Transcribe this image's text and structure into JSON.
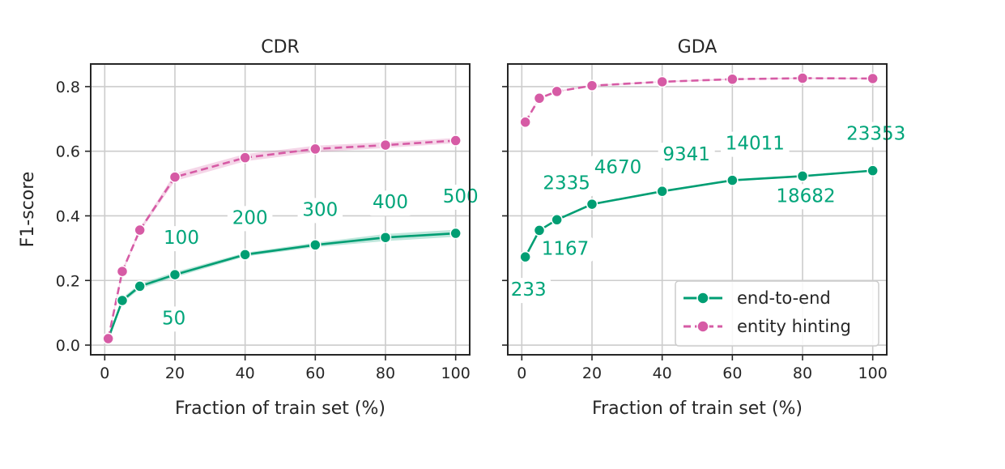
{
  "chart_data": [
    {
      "type": "line",
      "title": "CDR",
      "xlabel": "Fraction of train set (%)",
      "ylabel": "F1-score",
      "xlim": [
        -4,
        104
      ],
      "ylim": [
        -0.03,
        0.87
      ],
      "xticks": [
        0,
        20,
        40,
        60,
        80,
        100
      ],
      "yticks": [
        0.0,
        0.2,
        0.4,
        0.6,
        0.8
      ],
      "ytick_labels": [
        "0.0",
        "0.2",
        "0.4",
        "0.6",
        "0.8"
      ],
      "grid": true,
      "x": [
        1,
        5,
        10,
        20,
        40,
        60,
        80,
        100
      ],
      "series": [
        {
          "name": "end-to-end",
          "values": [
            0.02,
            0.138,
            0.182,
            0.218,
            0.28,
            0.31,
            0.333,
            0.346
          ],
          "band": [
            0.006,
            0.008,
            0.008,
            0.008,
            0.006,
            0.007,
            0.011,
            0.011
          ]
        },
        {
          "name": "entity hinting",
          "values": [
            0.02,
            0.228,
            0.356,
            0.52,
            0.58,
            0.607,
            0.619,
            0.633
          ],
          "band": [
            0.005,
            0.006,
            0.006,
            0.012,
            0.011,
            0.01,
            0.009,
            0.008
          ]
        }
      ],
      "annotations": [
        {
          "text": "50",
          "x": 10,
          "y": 0.182
        },
        {
          "text": "100",
          "x": 20,
          "y": 0.218
        },
        {
          "text": "200",
          "x": 40,
          "y": 0.28
        },
        {
          "text": "300",
          "x": 60,
          "y": 0.31
        },
        {
          "text": "400",
          "x": 80,
          "y": 0.333
        },
        {
          "text": "500",
          "x": 100,
          "y": 0.346
        }
      ]
    },
    {
      "type": "line",
      "title": "GDA",
      "xlabel": "Fraction of train set (%)",
      "ylabel": "",
      "xlim": [
        -4,
        104
      ],
      "ylim": [
        -0.03,
        0.87
      ],
      "xticks": [
        0,
        20,
        40,
        60,
        80,
        100
      ],
      "yticks": [
        0.0,
        0.2,
        0.4,
        0.6,
        0.8
      ],
      "ytick_labels": [],
      "grid": true,
      "x": [
        1,
        5,
        10,
        20,
        40,
        60,
        80,
        100
      ],
      "series": [
        {
          "name": "end-to-end",
          "values": [
            0.273,
            0.355,
            0.388,
            0.436,
            0.476,
            0.51,
            0.523,
            0.54
          ],
          "band": [
            0.003,
            0.003,
            0.003,
            0.003,
            0.003,
            0.003,
            0.003,
            0.003
          ]
        },
        {
          "name": "entity hinting",
          "values": [
            0.69,
            0.764,
            0.785,
            0.803,
            0.815,
            0.823,
            0.826,
            0.825
          ],
          "band": [
            0.002,
            0.002,
            0.002,
            0.002,
            0.002,
            0.002,
            0.002,
            0.002
          ]
        }
      ],
      "annotations": [
        {
          "text": "233",
          "x": 1,
          "y": 0.273
        },
        {
          "text": "1167",
          "x": 5,
          "y": 0.355
        },
        {
          "text": "2335",
          "x": 10,
          "y": 0.388
        },
        {
          "text": "4670",
          "x": 20,
          "y": 0.436
        },
        {
          "text": "9341",
          "x": 40,
          "y": 0.476
        },
        {
          "text": "14011",
          "x": 60,
          "y": 0.51
        },
        {
          "text": "18682",
          "x": 80,
          "y": 0.523
        },
        {
          "text": "23353",
          "x": 100,
          "y": 0.54
        }
      ],
      "legend": "lower-right"
    }
  ],
  "colors": {
    "end_to_end": "#009e73",
    "entity_hinting": "#d65ba5",
    "annotation": "#00a57a"
  }
}
